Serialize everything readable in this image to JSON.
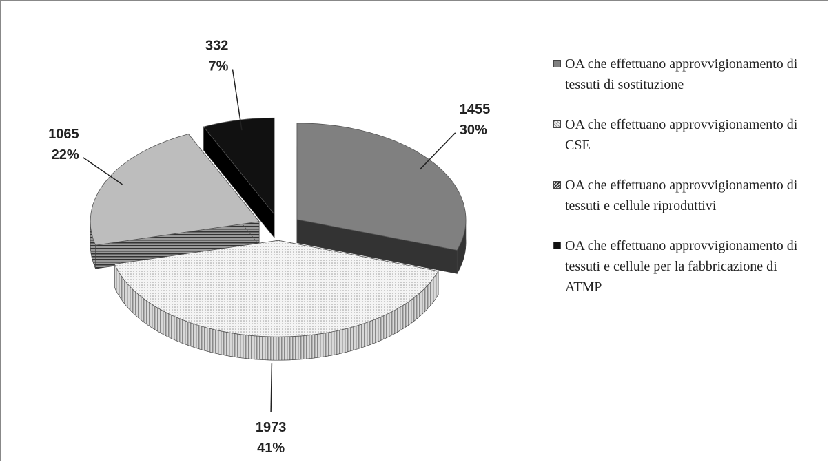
{
  "chart_data": {
    "type": "pie",
    "categories": [
      "OA che effettuano approvvigionamento di tessuti di sostituzione",
      "OA che effettuano approvvigionamento di CSE",
      "OA che effettuano approvvigionamento di tessuti e cellule riproduttivi",
      "OA che effettuano approvvigionamento di tessuti e cellule per la fabbricazione di ATMP"
    ],
    "values": [
      1455,
      1973,
      1065,
      332
    ],
    "shares": [
      30,
      41,
      22,
      7
    ],
    "share_labels": [
      "30%",
      "41%",
      "22%",
      "7%"
    ],
    "colors": [
      "#808080",
      "#e8e8e8",
      "#bdbdbd",
      "#111111"
    ]
  }
}
